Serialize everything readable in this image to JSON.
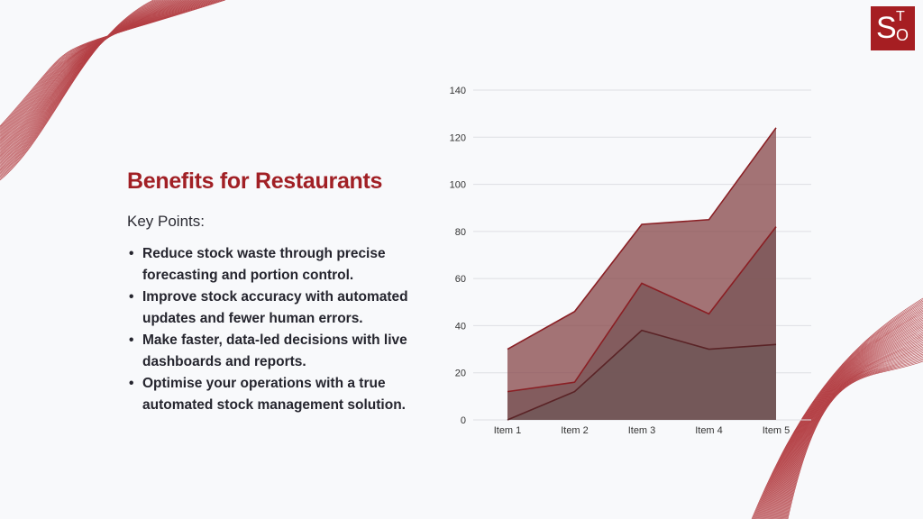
{
  "logo": {
    "s": "S",
    "t": "T",
    "o": "O",
    "bg": "#a61e22"
  },
  "slide": {
    "title": "Benefits for Restaurants",
    "subtitle": "Key Points:",
    "bullets": [
      "Reduce stock waste through precise forecasting and portion control.",
      "Improve stock accuracy with automated updates and fewer human errors.",
      "Make faster, data-led decisions with live dashboards and reports.",
      "Optimise your operations with a true automated stock management solution."
    ]
  },
  "colors": {
    "accent": "#a12025",
    "area_top": "#8b4d4f",
    "area_mid": "#7a5657",
    "area_bottom": "#6f5758"
  },
  "chart_data": {
    "type": "area",
    "categories": [
      "Item 1",
      "Item 2",
      "Item 3",
      "Item 4",
      "Item 5"
    ],
    "series": [
      {
        "values": [
          0,
          12,
          38,
          30,
          32
        ]
      },
      {
        "values": [
          12,
          16,
          58,
          45,
          82
        ]
      },
      {
        "values": [
          30,
          46,
          83,
          85,
          124
        ]
      }
    ],
    "ylim": [
      0,
      140
    ],
    "yticks": [
      0,
      20,
      40,
      60,
      80,
      100,
      120,
      140
    ],
    "grid": true,
    "xlabel": "",
    "ylabel": "",
    "title": ""
  }
}
